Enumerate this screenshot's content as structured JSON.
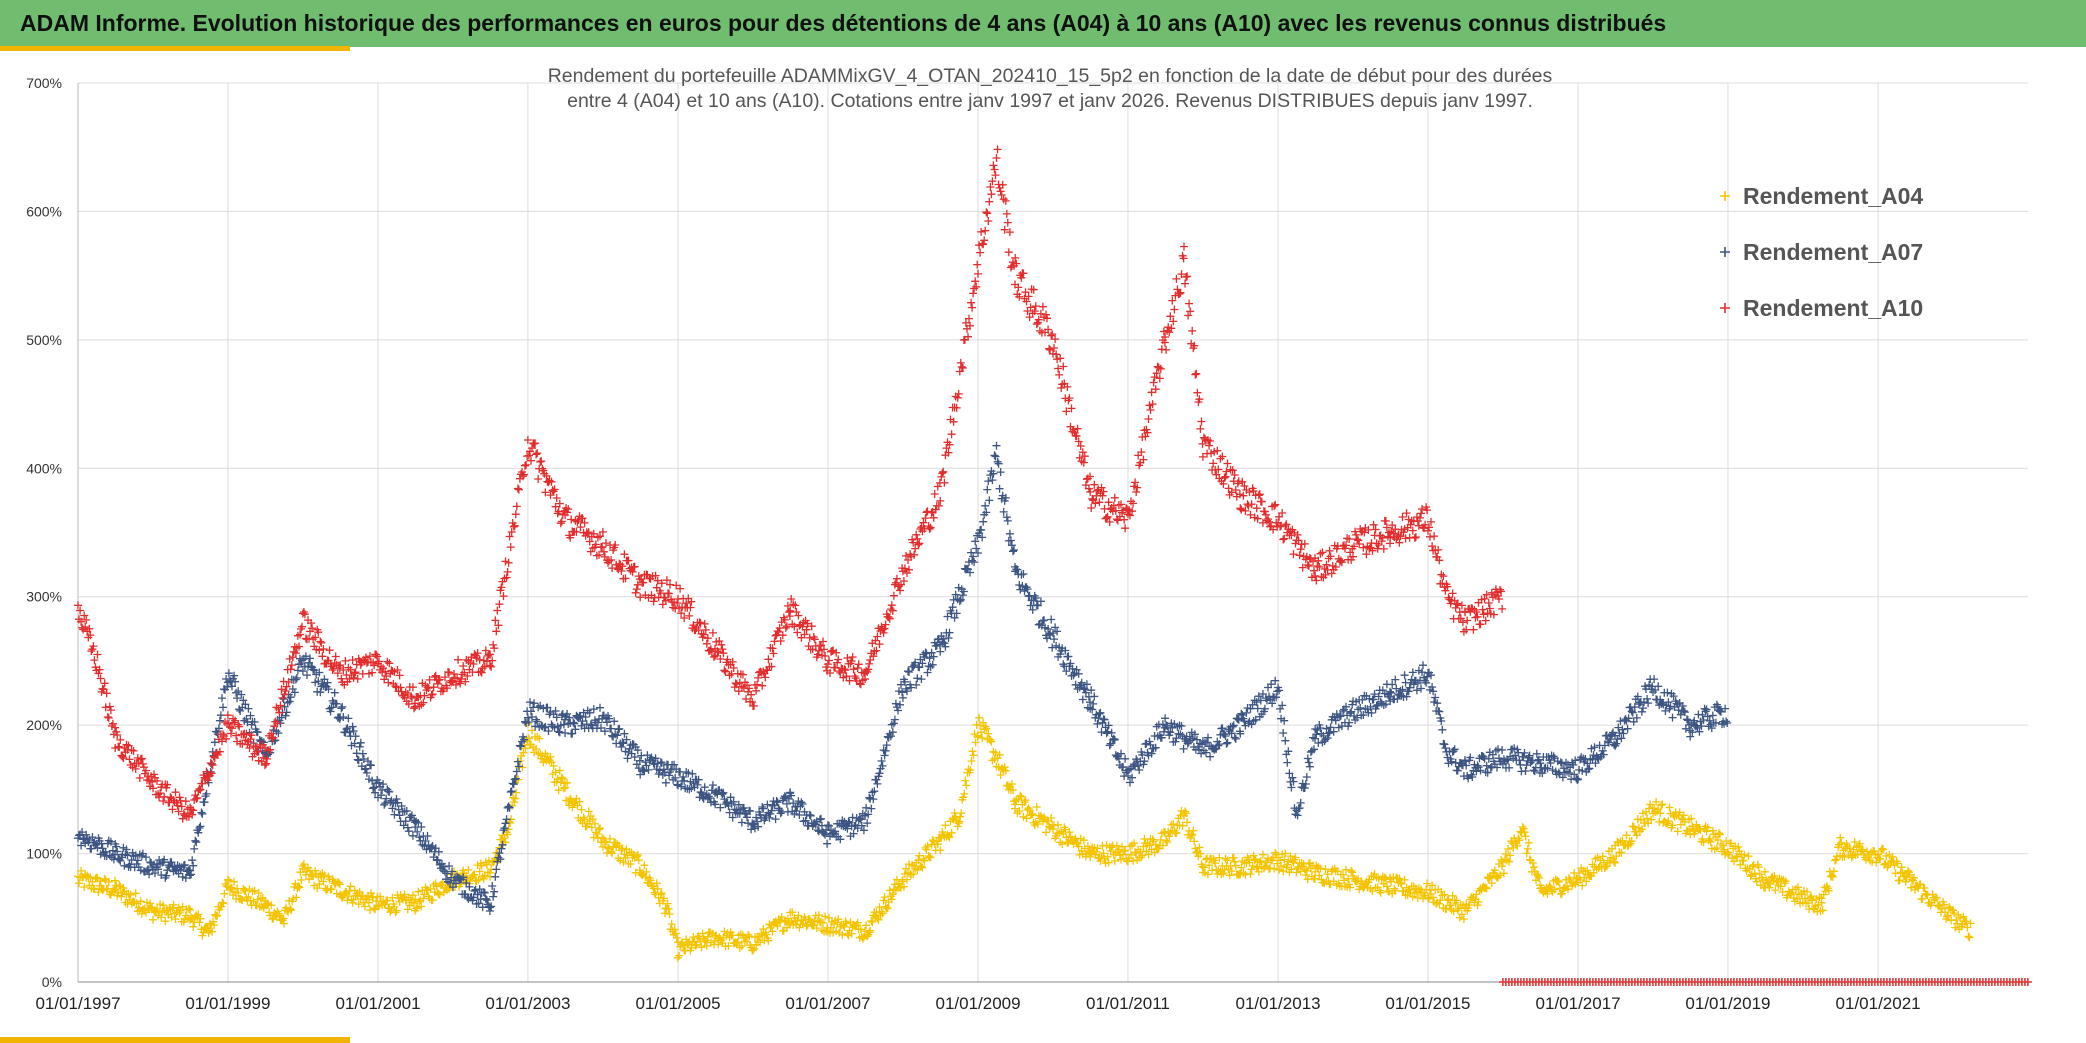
{
  "header": {
    "title": "ADAM Informe. Evolution historique des performances en euros pour des détentions de 4 ans (A04) à 10 ans (A10) avec les revenus connus distribués"
  },
  "colors": {
    "header_bg": "#70bd70",
    "accent": "#f1b400",
    "A04": "#f5c400",
    "A07": "#3d5583",
    "A10": "#e32d2d"
  },
  "chart_data": {
    "type": "scatter",
    "title_lines": [
      "Rendement du portefeuille ADAMMixGV_4_OTAN_202410_15_5p2  en fonction de la date de début pour des durées",
      "entre 4 (A04) et 10 ans (A10). Cotations entre janv 1997 et janv 2026. Revenus DISTRIBUES depuis janv 1997."
    ],
    "x_axis": {
      "type": "date",
      "range": [
        "1997-01-01",
        "2023-01-01"
      ],
      "tick_labels": [
        "01/01/1997",
        "01/01/1999",
        "01/01/2001",
        "01/01/2003",
        "01/01/2005",
        "01/01/2007",
        "01/01/2009",
        "01/01/2011",
        "01/01/2013",
        "01/01/2015",
        "01/01/2017",
        "01/01/2019",
        "01/01/2021"
      ]
    },
    "y_axis": {
      "range": [
        0,
        700
      ],
      "tick_labels": [
        "0%",
        "100%",
        "200%",
        "300%",
        "400%",
        "500%",
        "600%",
        "700%"
      ]
    },
    "grid": true,
    "legend_position": "top-right",
    "marker": "+",
    "series": [
      {
        "name": "Rendement_A04",
        "color": "#f5c400",
        "points": [
          [
            "1997-01-01",
            80
          ],
          [
            "1997-07-01",
            72
          ],
          [
            "1998-01-01",
            55
          ],
          [
            "1998-07-01",
            52
          ],
          [
            "1998-10-01",
            38
          ],
          [
            "1999-01-01",
            75
          ],
          [
            "1999-07-01",
            60
          ],
          [
            "1999-10-01",
            48
          ],
          [
            "2000-01-01",
            85
          ],
          [
            "2000-07-01",
            72
          ],
          [
            "2001-01-01",
            60
          ],
          [
            "2001-07-01",
            62
          ],
          [
            "2002-01-01",
            80
          ],
          [
            "2002-07-01",
            88
          ],
          [
            "2002-10-01",
            120
          ],
          [
            "2003-01-01",
            195
          ],
          [
            "2003-07-01",
            150
          ],
          [
            "2004-01-01",
            110
          ],
          [
            "2004-07-01",
            90
          ],
          [
            "2004-11-01",
            60
          ],
          [
            "2005-01-01",
            25
          ],
          [
            "2005-07-01",
            35
          ],
          [
            "2006-01-01",
            30
          ],
          [
            "2006-07-01",
            50
          ],
          [
            "2007-01-01",
            45
          ],
          [
            "2007-07-01",
            40
          ],
          [
            "2008-01-01",
            80
          ],
          [
            "2008-07-01",
            110
          ],
          [
            "2008-10-01",
            130
          ],
          [
            "2009-01-01",
            200
          ],
          [
            "2009-04-01",
            175
          ],
          [
            "2009-07-01",
            140
          ],
          [
            "2010-01-01",
            120
          ],
          [
            "2010-07-01",
            100
          ],
          [
            "2011-01-01",
            100
          ],
          [
            "2011-07-01",
            110
          ],
          [
            "2011-10-01",
            130
          ],
          [
            "2012-01-01",
            90
          ],
          [
            "2012-07-01",
            90
          ],
          [
            "2013-01-01",
            95
          ],
          [
            "2013-07-01",
            85
          ],
          [
            "2014-01-01",
            80
          ],
          [
            "2014-07-01",
            75
          ],
          [
            "2015-01-01",
            70
          ],
          [
            "2015-07-01",
            55
          ],
          [
            "2016-01-01",
            90
          ],
          [
            "2016-04-01",
            120
          ],
          [
            "2016-07-01",
            70
          ],
          [
            "2017-01-01",
            80
          ],
          [
            "2017-07-01",
            100
          ],
          [
            "2018-01-01",
            135
          ],
          [
            "2018-07-01",
            120
          ],
          [
            "2019-01-01",
            105
          ],
          [
            "2019-07-01",
            80
          ],
          [
            "2020-01-01",
            65
          ],
          [
            "2020-04-01",
            60
          ],
          [
            "2020-07-01",
            105
          ],
          [
            "2021-01-01",
            100
          ],
          [
            "2021-07-01",
            75
          ],
          [
            "2022-01-01",
            50
          ],
          [
            "2022-04-01",
            40
          ]
        ]
      },
      {
        "name": "Rendement_A07",
        "color": "#3d5583",
        "points": [
          [
            "1997-01-01",
            115
          ],
          [
            "1997-07-01",
            100
          ],
          [
            "1998-01-01",
            90
          ],
          [
            "1998-07-01",
            85
          ],
          [
            "1999-01-01",
            240
          ],
          [
            "1999-07-01",
            175
          ],
          [
            "2000-01-01",
            250
          ],
          [
            "2000-07-01",
            210
          ],
          [
            "2001-01-01",
            150
          ],
          [
            "2001-07-01",
            120
          ],
          [
            "2002-01-01",
            80
          ],
          [
            "2002-07-01",
            60
          ],
          [
            "2003-01-01",
            210
          ],
          [
            "2003-07-01",
            200
          ],
          [
            "2004-01-01",
            205
          ],
          [
            "2004-07-01",
            170
          ],
          [
            "2005-01-01",
            160
          ],
          [
            "2005-07-01",
            145
          ],
          [
            "2006-01-01",
            125
          ],
          [
            "2006-07-01",
            140
          ],
          [
            "2007-01-01",
            115
          ],
          [
            "2007-07-01",
            125
          ],
          [
            "2008-01-01",
            230
          ],
          [
            "2008-07-01",
            260
          ],
          [
            "2009-01-01",
            340
          ],
          [
            "2009-04-01",
            410
          ],
          [
            "2009-07-01",
            320
          ],
          [
            "2010-01-01",
            270
          ],
          [
            "2010-07-01",
            220
          ],
          [
            "2011-01-01",
            160
          ],
          [
            "2011-07-01",
            200
          ],
          [
            "2012-01-01",
            180
          ],
          [
            "2012-07-01",
            200
          ],
          [
            "2013-01-01",
            230
          ],
          [
            "2013-04-01",
            130
          ],
          [
            "2013-07-01",
            190
          ],
          [
            "2014-01-01",
            210
          ],
          [
            "2014-07-01",
            225
          ],
          [
            "2015-01-01",
            240
          ],
          [
            "2015-04-01",
            180
          ],
          [
            "2015-07-01",
            165
          ],
          [
            "2016-01-01",
            175
          ],
          [
            "2016-07-01",
            170
          ],
          [
            "2017-01-01",
            165
          ],
          [
            "2017-07-01",
            190
          ],
          [
            "2018-01-01",
            230
          ],
          [
            "2018-07-01",
            200
          ],
          [
            "2019-01-01",
            210
          ]
        ]
      },
      {
        "name": "Rendement_A10",
        "color": "#e32d2d",
        "points": [
          [
            "1997-01-01",
            290
          ],
          [
            "1997-04-01",
            250
          ],
          [
            "1997-07-01",
            190
          ],
          [
            "1998-01-01",
            155
          ],
          [
            "1998-07-01",
            130
          ],
          [
            "1999-01-01",
            200
          ],
          [
            "1999-07-01",
            175
          ],
          [
            "2000-01-01",
            280
          ],
          [
            "2000-07-01",
            240
          ],
          [
            "2001-01-01",
            250
          ],
          [
            "2001-07-01",
            220
          ],
          [
            "2002-01-01",
            240
          ],
          [
            "2002-07-01",
            250
          ],
          [
            "2003-01-01",
            420
          ],
          [
            "2003-07-01",
            360
          ],
          [
            "2004-01-01",
            340
          ],
          [
            "2004-07-01",
            310
          ],
          [
            "2005-01-01",
            300
          ],
          [
            "2005-07-01",
            260
          ],
          [
            "2006-01-01",
            220
          ],
          [
            "2006-07-01",
            290
          ],
          [
            "2007-01-01",
            250
          ],
          [
            "2007-07-01",
            240
          ],
          [
            "2008-01-01",
            320
          ],
          [
            "2008-07-01",
            380
          ],
          [
            "2009-01-01",
            560
          ],
          [
            "2009-04-01",
            640
          ],
          [
            "2009-07-01",
            550
          ],
          [
            "2010-01-01",
            500
          ],
          [
            "2010-07-01",
            380
          ],
          [
            "2011-01-01",
            360
          ],
          [
            "2011-07-01",
            500
          ],
          [
            "2011-10-01",
            560
          ],
          [
            "2012-01-01",
            420
          ],
          [
            "2012-07-01",
            380
          ],
          [
            "2013-01-01",
            360
          ],
          [
            "2013-07-01",
            320
          ],
          [
            "2014-01-01",
            340
          ],
          [
            "2014-07-01",
            350
          ],
          [
            "2015-01-01",
            360
          ],
          [
            "2015-04-01",
            300
          ],
          [
            "2015-07-01",
            280
          ],
          [
            "2016-01-01",
            300
          ]
        ]
      }
    ],
    "baseline_segment": {
      "from": "2016-01-01",
      "to": "2023-01-01",
      "value": 0,
      "color": "#e32d2d"
    }
  }
}
